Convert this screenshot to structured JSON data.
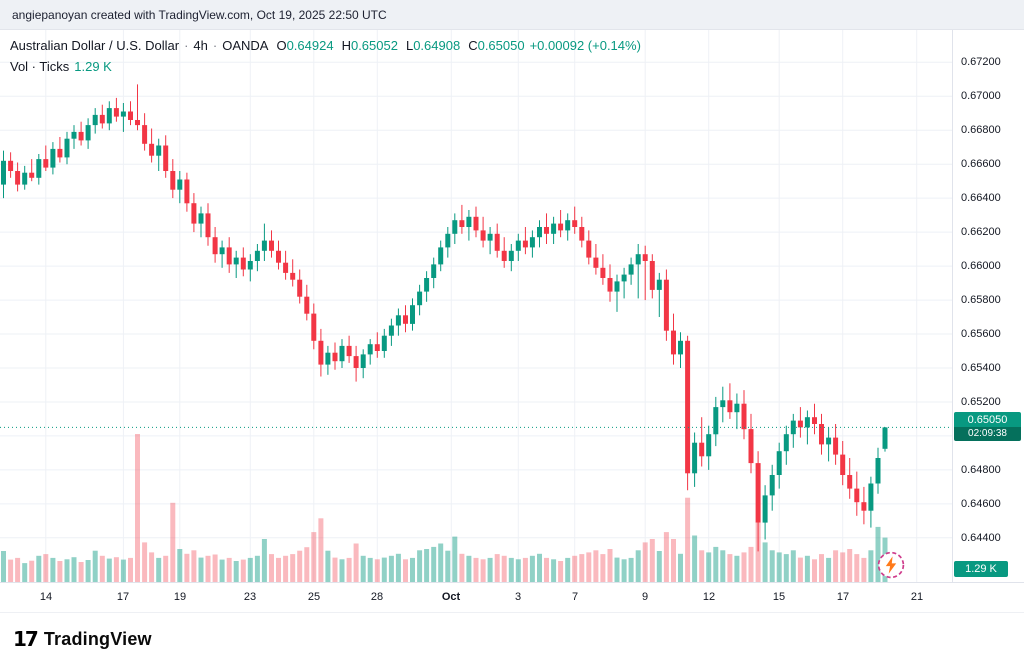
{
  "attribution": "angiepanoyan created with TradingView.com, Oct 19, 2025 22:50 UTC",
  "legend": {
    "symbol_title": "Australian Dollar / U.S. Dollar",
    "sep": "·",
    "interval": "4h",
    "exchange": "OANDA",
    "ohlc": {
      "o_label": "O",
      "o": "0.64924",
      "h_label": "H",
      "h": "0.65052",
      "l_label": "L",
      "l": "0.64908",
      "c_label": "C",
      "c": "0.65050",
      "change": "+0.00092 (+0.14%)"
    },
    "volume_label": "Vol · Ticks",
    "volume_value": "1.29 K"
  },
  "price_scale": {
    "labels": [
      "0.67200",
      "0.67000",
      "0.66800",
      "0.66600",
      "0.66400",
      "0.66200",
      "0.66000",
      "0.65800",
      "0.65600",
      "0.65400",
      "0.65200",
      "0.64800",
      "0.64600",
      "0.64400"
    ],
    "current_price_badge": {
      "price": "0.65050",
      "countdown": "02:09:38"
    },
    "volume_badge": "1.29 K"
  },
  "footer": {
    "brand": "TradingView"
  },
  "colors": {
    "up": "#089981",
    "down": "#f23645",
    "vol_up": "rgba(8,153,129,0.45)",
    "vol_down": "rgba(242,54,69,0.35)",
    "grid": "#eef1f6",
    "badge_bg": "#089981",
    "countdown_bg": "#05705c",
    "flash_ring": "#cf3c8c",
    "flash_bolt": "#ff7a1a"
  },
  "chart_data": {
    "type": "candlestick",
    "title": "Australian Dollar / U.S. Dollar",
    "symbol": "AUD/USD",
    "interval": "4h",
    "exchange": "OANDA",
    "legend_ohlc": {
      "open": 0.64924,
      "high": 0.65052,
      "low": 0.64908,
      "close": 0.6505,
      "change": 0.00092,
      "change_pct": 0.14
    },
    "current_price": 0.6505,
    "price_axis": {
      "min": 0.6414,
      "max": 0.6739,
      "grid_start": 0.644,
      "grid_step": 0.002,
      "grid_count": 15
    },
    "volume_axis": {
      "max": 4300,
      "last": 1290
    },
    "x_labels": [
      {
        "text": "14",
        "i": 6
      },
      {
        "text": "17",
        "i": 17
      },
      {
        "text": "19",
        "i": 25
      },
      {
        "text": "23",
        "i": 35
      },
      {
        "text": "25",
        "i": 44
      },
      {
        "text": "28",
        "i": 53
      },
      {
        "text": "Oct",
        "i": 63.5,
        "month": true
      },
      {
        "text": "3",
        "i": 73
      },
      {
        "text": "7",
        "i": 81
      },
      {
        "text": "9",
        "i": 91
      },
      {
        "text": "12",
        "i": 100
      },
      {
        "text": "15",
        "i": 110
      },
      {
        "text": "17",
        "i": 119
      },
      {
        "text": "21",
        "i": 129.5
      }
    ],
    "candles": [
      [
        0.6648,
        0.6668,
        0.664,
        0.6662
      ],
      [
        0.6662,
        0.6667,
        0.6652,
        0.6656
      ],
      [
        0.6656,
        0.6661,
        0.6644,
        0.6648
      ],
      [
        0.6648,
        0.6659,
        0.6645,
        0.6655
      ],
      [
        0.6655,
        0.6663,
        0.665,
        0.6652
      ],
      [
        0.6652,
        0.6666,
        0.6648,
        0.6663
      ],
      [
        0.6663,
        0.6671,
        0.6656,
        0.6658
      ],
      [
        0.6658,
        0.6673,
        0.6654,
        0.6669
      ],
      [
        0.6669,
        0.6676,
        0.6661,
        0.6664
      ],
      [
        0.6664,
        0.6679,
        0.666,
        0.6675
      ],
      [
        0.6675,
        0.6683,
        0.6669,
        0.6679
      ],
      [
        0.6679,
        0.6685,
        0.6671,
        0.6674
      ],
      [
        0.6674,
        0.6687,
        0.6669,
        0.6683
      ],
      [
        0.6683,
        0.6693,
        0.6678,
        0.6689
      ],
      [
        0.6689,
        0.6695,
        0.6681,
        0.6684
      ],
      [
        0.6684,
        0.6697,
        0.668,
        0.6693
      ],
      [
        0.6693,
        0.6699,
        0.6685,
        0.6688
      ],
      [
        0.6688,
        0.6696,
        0.6679,
        0.6691
      ],
      [
        0.6691,
        0.6697,
        0.6683,
        0.6686
      ],
      [
        0.6686,
        0.6707,
        0.668,
        0.6683
      ],
      [
        0.6683,
        0.669,
        0.6668,
        0.6672
      ],
      [
        0.6672,
        0.6681,
        0.6661,
        0.6665
      ],
      [
        0.6665,
        0.6675,
        0.6656,
        0.6671
      ],
      [
        0.6671,
        0.6677,
        0.6652,
        0.6656
      ],
      [
        0.6656,
        0.6663,
        0.664,
        0.6645
      ],
      [
        0.6645,
        0.6656,
        0.6637,
        0.6651
      ],
      [
        0.6651,
        0.6655,
        0.6632,
        0.6637
      ],
      [
        0.6637,
        0.6643,
        0.662,
        0.6625
      ],
      [
        0.6625,
        0.6635,
        0.6617,
        0.6631
      ],
      [
        0.6631,
        0.6637,
        0.6612,
        0.6617
      ],
      [
        0.6617,
        0.6623,
        0.6602,
        0.6607
      ],
      [
        0.6607,
        0.6615,
        0.6599,
        0.6611
      ],
      [
        0.6611,
        0.6617,
        0.6596,
        0.6601
      ],
      [
        0.6601,
        0.6609,
        0.6593,
        0.6605
      ],
      [
        0.6605,
        0.6611,
        0.6594,
        0.6598
      ],
      [
        0.6598,
        0.6607,
        0.6591,
        0.6603
      ],
      [
        0.6603,
        0.6613,
        0.6597,
        0.6609
      ],
      [
        0.6609,
        0.6625,
        0.6603,
        0.6615
      ],
      [
        0.6615,
        0.6621,
        0.6605,
        0.6609
      ],
      [
        0.6609,
        0.6615,
        0.6598,
        0.6602
      ],
      [
        0.6602,
        0.6609,
        0.6592,
        0.6596
      ],
      [
        0.6596,
        0.6604,
        0.6588,
        0.6592
      ],
      [
        0.6592,
        0.6598,
        0.6578,
        0.6582
      ],
      [
        0.6582,
        0.6589,
        0.6568,
        0.6572
      ],
      [
        0.6572,
        0.6578,
        0.6551,
        0.6556
      ],
      [
        0.6556,
        0.6563,
        0.6535,
        0.6542
      ],
      [
        0.6542,
        0.6553,
        0.6536,
        0.6549
      ],
      [
        0.6549,
        0.6555,
        0.6539,
        0.6544
      ],
      [
        0.6544,
        0.6557,
        0.654,
        0.6553
      ],
      [
        0.6553,
        0.6559,
        0.6543,
        0.6547
      ],
      [
        0.6547,
        0.6553,
        0.6532,
        0.654
      ],
      [
        0.654,
        0.6551,
        0.6534,
        0.6548
      ],
      [
        0.6548,
        0.6557,
        0.6542,
        0.6554
      ],
      [
        0.6554,
        0.6561,
        0.6546,
        0.655
      ],
      [
        0.655,
        0.6563,
        0.6546,
        0.6559
      ],
      [
        0.6559,
        0.6569,
        0.6553,
        0.6565
      ],
      [
        0.6565,
        0.6575,
        0.6559,
        0.6571
      ],
      [
        0.6571,
        0.6577,
        0.6561,
        0.6566
      ],
      [
        0.6566,
        0.6581,
        0.6562,
        0.6577
      ],
      [
        0.6577,
        0.6589,
        0.6571,
        0.6585
      ],
      [
        0.6585,
        0.6597,
        0.6579,
        0.6593
      ],
      [
        0.6593,
        0.6605,
        0.6587,
        0.6601
      ],
      [
        0.6601,
        0.6615,
        0.6597,
        0.6611
      ],
      [
        0.6611,
        0.6623,
        0.6605,
        0.6619
      ],
      [
        0.6619,
        0.6631,
        0.6613,
        0.6627
      ],
      [
        0.6627,
        0.6636,
        0.6619,
        0.6623
      ],
      [
        0.6623,
        0.6633,
        0.6615,
        0.6629
      ],
      [
        0.6629,
        0.6635,
        0.6617,
        0.6621
      ],
      [
        0.6621,
        0.6629,
        0.6611,
        0.6615
      ],
      [
        0.6615,
        0.6623,
        0.6607,
        0.6619
      ],
      [
        0.6619,
        0.6625,
        0.6605,
        0.6609
      ],
      [
        0.6609,
        0.6617,
        0.6599,
        0.6603
      ],
      [
        0.6603,
        0.6613,
        0.6597,
        0.6609
      ],
      [
        0.6609,
        0.6619,
        0.6603,
        0.6615
      ],
      [
        0.6615,
        0.6623,
        0.6607,
        0.6611
      ],
      [
        0.6611,
        0.6621,
        0.6605,
        0.6617
      ],
      [
        0.6617,
        0.6627,
        0.6611,
        0.6623
      ],
      [
        0.6623,
        0.6631,
        0.6613,
        0.6619
      ],
      [
        0.6619,
        0.6629,
        0.6613,
        0.6625
      ],
      [
        0.6625,
        0.6633,
        0.6617,
        0.6621
      ],
      [
        0.6621,
        0.6631,
        0.6615,
        0.6627
      ],
      [
        0.6627,
        0.6635,
        0.6619,
        0.6623
      ],
      [
        0.6623,
        0.6629,
        0.6611,
        0.6615
      ],
      [
        0.6615,
        0.6621,
        0.6601,
        0.6605
      ],
      [
        0.6605,
        0.6613,
        0.6595,
        0.6599
      ],
      [
        0.6599,
        0.6607,
        0.6589,
        0.6593
      ],
      [
        0.6593,
        0.6601,
        0.6579,
        0.6585
      ],
      [
        0.6585,
        0.6595,
        0.6573,
        0.6591
      ],
      [
        0.6591,
        0.6599,
        0.6581,
        0.6595
      ],
      [
        0.6595,
        0.6605,
        0.6589,
        0.6601
      ],
      [
        0.6601,
        0.6613,
        0.6581,
        0.6607
      ],
      [
        0.6607,
        0.6612,
        0.658,
        0.6603
      ],
      [
        0.6603,
        0.6607,
        0.6581,
        0.6586
      ],
      [
        0.6586,
        0.6596,
        0.657,
        0.6592
      ],
      [
        0.6592,
        0.6598,
        0.6556,
        0.6562
      ],
      [
        0.6562,
        0.6572,
        0.6542,
        0.6548
      ],
      [
        0.6548,
        0.6561,
        0.654,
        0.6556
      ],
      [
        0.6556,
        0.6559,
        0.6468,
        0.6478
      ],
      [
        0.6478,
        0.6502,
        0.647,
        0.6496
      ],
      [
        0.6496,
        0.6511,
        0.6482,
        0.6488
      ],
      [
        0.6488,
        0.6506,
        0.648,
        0.6501
      ],
      [
        0.6501,
        0.6523,
        0.6494,
        0.6517
      ],
      [
        0.6517,
        0.6529,
        0.6508,
        0.6521
      ],
      [
        0.6521,
        0.6531,
        0.651,
        0.6514
      ],
      [
        0.6514,
        0.6525,
        0.6504,
        0.6519
      ],
      [
        0.6519,
        0.6527,
        0.6498,
        0.6504
      ],
      [
        0.6504,
        0.6513,
        0.6478,
        0.6484
      ],
      [
        0.6484,
        0.6491,
        0.6432,
        0.6449
      ],
      [
        0.6449,
        0.6471,
        0.6439,
        0.6465
      ],
      [
        0.6465,
        0.6483,
        0.6456,
        0.6477
      ],
      [
        0.6477,
        0.6496,
        0.6469,
        0.6491
      ],
      [
        0.6491,
        0.6506,
        0.6483,
        0.6501
      ],
      [
        0.6501,
        0.6513,
        0.6493,
        0.6509
      ],
      [
        0.6509,
        0.6517,
        0.6499,
        0.6505
      ],
      [
        0.6505,
        0.6515,
        0.6495,
        0.6511
      ],
      [
        0.6511,
        0.6519,
        0.6501,
        0.6507
      ],
      [
        0.6507,
        0.6513,
        0.6489,
        0.6495
      ],
      [
        0.6495,
        0.6505,
        0.6485,
        0.6499
      ],
      [
        0.6499,
        0.6507,
        0.6483,
        0.6489
      ],
      [
        0.6489,
        0.6497,
        0.6471,
        0.6477
      ],
      [
        0.6477,
        0.6487,
        0.6463,
        0.6469
      ],
      [
        0.6469,
        0.6479,
        0.6453,
        0.6461
      ],
      [
        0.6461,
        0.647,
        0.6448,
        0.6456
      ],
      [
        0.6456,
        0.6476,
        0.6446,
        0.6472
      ],
      [
        0.6472,
        0.6493,
        0.6466,
        0.6487
      ],
      [
        0.64924,
        0.65052,
        0.64908,
        0.6505
      ]
    ],
    "volumes": [
      900,
      650,
      700,
      550,
      620,
      760,
      810,
      700,
      610,
      660,
      720,
      580,
      640,
      910,
      760,
      680,
      720,
      650,
      700,
      4300,
      1150,
      860,
      700,
      760,
      2300,
      960,
      820,
      920,
      710,
      760,
      800,
      650,
      700,
      610,
      650,
      700,
      760,
      1250,
      810,
      700,
      760,
      810,
      910,
      1010,
      1450,
      1850,
      910,
      710,
      660,
      700,
      1120,
      760,
      700,
      660,
      710,
      760,
      820,
      660,
      700,
      920,
      960,
      1020,
      1120,
      910,
      1320,
      820,
      760,
      700,
      660,
      700,
      810,
      760,
      700,
      660,
      700,
      760,
      820,
      700,
      660,
      610,
      700,
      760,
      810,
      860,
      920,
      810,
      960,
      710,
      660,
      700,
      920,
      1150,
      1250,
      900,
      1450,
      1250,
      820,
      2450,
      1350,
      920,
      860,
      1020,
      920,
      810,
      760,
      860,
      1020,
      1750,
      1150,
      920,
      860,
      810,
      920,
      710,
      760,
      660,
      810,
      700,
      920,
      860,
      960,
      810,
      700,
      920,
      1600,
      1290
    ]
  }
}
